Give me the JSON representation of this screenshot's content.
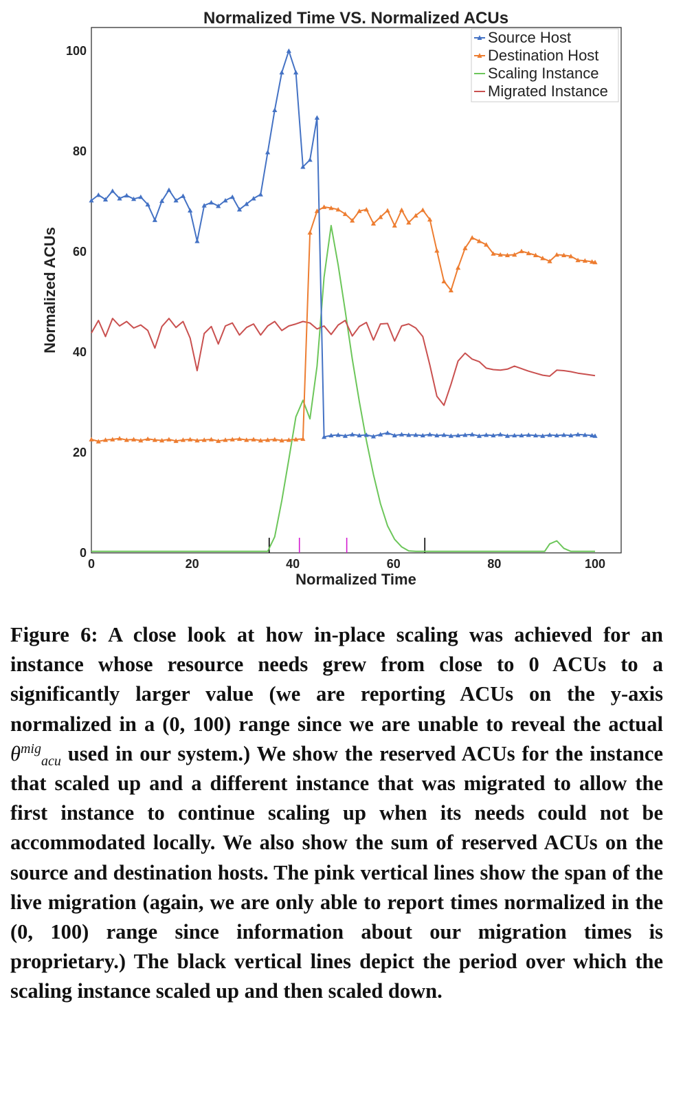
{
  "chart_data": {
    "type": "line",
    "title": "Normalized Time VS. Normalized ACUs",
    "xlabel": "Normalized Time",
    "ylabel": "Normalized ACUs",
    "xlim": [
      0,
      100
    ],
    "ylim": [
      0,
      100
    ],
    "xticks": [
      0,
      20,
      40,
      60,
      80,
      100
    ],
    "yticks": [
      0,
      20,
      40,
      60,
      80,
      100
    ],
    "grid": false,
    "legend_position": "top-right",
    "series": [
      {
        "name": "Source Host",
        "color": "#4472C4",
        "marker": "triangle",
        "x": [
          0,
          1.4,
          2.8,
          4.2,
          5.6,
          7,
          8.4,
          9.8,
          11.2,
          12.6,
          14,
          15.4,
          16.8,
          18.2,
          19.6,
          21,
          22.4,
          23.8,
          25.2,
          26.6,
          28,
          29.4,
          30.8,
          32.2,
          33.6,
          35,
          36.4,
          37.8,
          39.2,
          40.6,
          42,
          43.4,
          44.8,
          46.2,
          47.6,
          49,
          50.4,
          51.8,
          53.2,
          54.6,
          56,
          57.4,
          58.8,
          60.2,
          61.6,
          63,
          64.4,
          65.8,
          67.2,
          68.6,
          70,
          71.4,
          72.8,
          74.2,
          75.6,
          77,
          78.4,
          79.8,
          81.2,
          82.6,
          84,
          85.4,
          86.8,
          88.2,
          89.6,
          91,
          92.4,
          93.8,
          95.2,
          96.6,
          98,
          99.4,
          100
        ],
        "y": [
          70.2,
          71.3,
          70.4,
          72.1,
          70.6,
          71.2,
          70.5,
          70.9,
          69.4,
          66.3,
          70.1,
          72.3,
          70.2,
          71.1,
          68.2,
          62.1,
          69.2,
          69.8,
          69.1,
          70.2,
          70.9,
          68.4,
          69.5,
          70.6,
          71.4,
          79.8,
          88.2,
          95.7,
          100,
          95.7,
          76.9,
          78.3,
          86.7,
          23.1,
          23.4,
          23.5,
          23.3,
          23.6,
          23.4,
          23.5,
          23.2,
          23.6,
          23.9,
          23.4,
          23.6,
          23.5,
          23.5,
          23.4,
          23.6,
          23.4,
          23.5,
          23.3,
          23.4,
          23.5,
          23.6,
          23.3,
          23.5,
          23.4,
          23.6,
          23.3,
          23.4,
          23.4,
          23.5,
          23.4,
          23.3,
          23.5,
          23.4,
          23.5,
          23.4,
          23.6,
          23.5,
          23.4,
          23.3
        ]
      },
      {
        "name": "Destination Host",
        "color": "#ED7D31",
        "marker": "triangle",
        "x": [
          0,
          1.4,
          2.8,
          4.2,
          5.6,
          7,
          8.4,
          9.8,
          11.2,
          12.6,
          14,
          15.4,
          16.8,
          18.2,
          19.6,
          21,
          22.4,
          23.8,
          25.2,
          26.6,
          28,
          29.4,
          30.8,
          32.2,
          33.6,
          35,
          36.4,
          37.8,
          39.2,
          40.6,
          42,
          43.4,
          44.8,
          46.2,
          47.6,
          49,
          50.4,
          51.8,
          53.2,
          54.6,
          56,
          57.4,
          58.8,
          60.2,
          61.6,
          63,
          64.4,
          65.8,
          67.2,
          68.6,
          70,
          71.4,
          72.8,
          74.2,
          75.6,
          77,
          78.4,
          79.8,
          81.2,
          82.6,
          84,
          85.4,
          86.8,
          88.2,
          89.6,
          91,
          92.4,
          93.8,
          95.2,
          96.6,
          98,
          99.4,
          100
        ],
        "y": [
          22.6,
          22.2,
          22.5,
          22.6,
          22.8,
          22.5,
          22.6,
          22.4,
          22.7,
          22.5,
          22.4,
          22.6,
          22.3,
          22.5,
          22.6,
          22.4,
          22.5,
          22.6,
          22.3,
          22.5,
          22.6,
          22.7,
          22.5,
          22.6,
          22.4,
          22.5,
          22.6,
          22.4,
          22.5,
          22.6,
          22.7,
          63.8,
          68.1,
          68.9,
          68.7,
          68.4,
          67.5,
          66.2,
          68.1,
          68.4,
          65.6,
          66.9,
          68.2,
          65.2,
          68.3,
          65.8,
          67.2,
          68.3,
          66.4,
          60.2,
          54.1,
          52.3,
          56.8,
          60.7,
          62.8,
          62.1,
          61.4,
          59.6,
          59.4,
          59.3,
          59.4,
          60.1,
          59.7,
          59.3,
          58.7,
          58.1,
          59.4,
          59.3,
          59.1,
          58.3,
          58.2,
          58.0,
          57.9
        ]
      },
      {
        "name": "Scaling Instance",
        "color": "#6CC65A",
        "marker": "none",
        "x": [
          0,
          5,
          10,
          15,
          20,
          25,
          30,
          35,
          36.4,
          37.8,
          39.2,
          40.6,
          42,
          43.4,
          44.8,
          46.2,
          47.6,
          49,
          50.4,
          51.8,
          53.2,
          54.6,
          56,
          57.4,
          58.8,
          60.2,
          61.6,
          63,
          64.4,
          65.8,
          67.2,
          68.6,
          70,
          75,
          80,
          85,
          90,
          91,
          92.4,
          93.8,
          95.2,
          96.6,
          98,
          100
        ],
        "y": [
          0.3,
          0.3,
          0.3,
          0.3,
          0.3,
          0.3,
          0.3,
          0.3,
          3.2,
          10.4,
          18.6,
          27.1,
          30.4,
          26.7,
          37.2,
          54.9,
          65.2,
          57.3,
          48.2,
          38.6,
          30.1,
          22.4,
          15.6,
          9.8,
          5.4,
          2.7,
          1.2,
          0.4,
          0.3,
          0.3,
          0.3,
          0.3,
          0.3,
          0.3,
          0.3,
          0.3,
          0.3,
          1.8,
          2.4,
          0.9,
          0.3,
          0.3,
          0.3,
          0.3
        ]
      },
      {
        "name": "Migrated Instance",
        "color": "#C9504F",
        "marker": "none",
        "x": [
          0,
          1.4,
          2.8,
          4.2,
          5.6,
          7,
          8.4,
          9.8,
          11.2,
          12.6,
          14,
          15.4,
          16.8,
          18.2,
          19.6,
          21,
          22.4,
          23.8,
          25.2,
          26.6,
          28,
          29.4,
          30.8,
          32.2,
          33.6,
          35,
          36.4,
          37.8,
          39.2,
          40.6,
          42,
          43.4,
          44.8,
          46.2,
          47.6,
          49,
          50.4,
          51.8,
          53.2,
          54.6,
          56,
          57.4,
          58.8,
          60.2,
          61.6,
          63,
          64.4,
          65.8,
          67.2,
          68.6,
          70,
          71.4,
          72.8,
          74.2,
          75.6,
          77,
          78.4,
          79.8,
          81.2,
          82.6,
          84,
          85.4,
          86.8,
          88.2,
          89.6,
          91,
          92.4,
          93.8,
          95.2,
          96.6,
          98,
          99.4,
          100
        ],
        "y": [
          43.8,
          46.3,
          43.1,
          46.7,
          45.2,
          46.1,
          44.8,
          45.4,
          44.3,
          40.8,
          45.1,
          46.7,
          44.9,
          46.1,
          42.8,
          36.3,
          43.7,
          45.1,
          41.6,
          45.2,
          45.8,
          43.4,
          44.9,
          45.6,
          43.4,
          45.2,
          46.1,
          44.3,
          45.2,
          45.6,
          46.1,
          45.8,
          44.6,
          45.2,
          43.5,
          45.4,
          46.3,
          43.2,
          45.1,
          45.9,
          42.4,
          45.6,
          45.7,
          42.2,
          45.2,
          45.6,
          44.8,
          43.1,
          37.4,
          31.2,
          29.4,
          33.6,
          38.2,
          39.8,
          38.6,
          38.1,
          36.8,
          36.5,
          36.4,
          36.6,
          37.2,
          36.7,
          36.2,
          35.8,
          35.4,
          35.2,
          36.4,
          36.3,
          36.1,
          35.8,
          35.6,
          35.4,
          35.3
        ]
      }
    ],
    "vertical_markers": [
      {
        "x": 35.3,
        "color": "#000000"
      },
      {
        "x": 41.3,
        "color": "#D21BD0"
      },
      {
        "x": 50.7,
        "color": "#D21BD0"
      },
      {
        "x": 66.2,
        "color": "#000000"
      }
    ]
  },
  "caption": {
    "label": "Figure 6:",
    "part1": "A close look at how in-place scaling was achieved for an instance whose resource needs grew from close to 0 ACUs to a significantly larger value (we are reporting ACUs on the y-axis normalized in a (0, 100) range since we are unable to reveal the actual",
    "theta": "θ",
    "theta_sup": "mig",
    "theta_sub": "acu",
    "part2": "used in our system.) We show the reserved ACUs for the instance that scaled up and a different instance that was migrated to allow the first instance to continue scaling up when its needs could not be accommodated locally. We also show the sum of reserved ACUs on the source and destination hosts. The pink vertical lines show the span of the live migration (again, we are only able to report times normalized in the (0, 100) range since information about our migration times is proprietary.) The black vertical lines depict the period over which the scaling instance scaled up and then scaled down."
  }
}
